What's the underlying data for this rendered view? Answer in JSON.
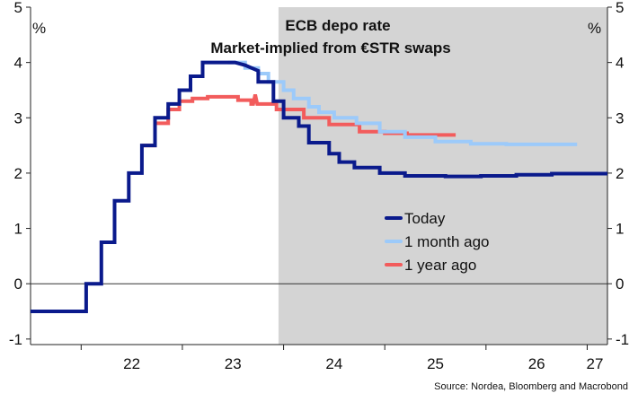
{
  "chart_data": {
    "type": "line",
    "title": "ECB depo rate",
    "subtitle": "Market-implied from €STR swaps",
    "y_unit_left": "%",
    "y_unit_right": "%",
    "ylim": [
      -1.1,
      5.0
    ],
    "yticks": [
      "-1",
      "0",
      "1",
      "2",
      "3",
      "4",
      "5"
    ],
    "xlim": [
      2021.5,
      2027.2
    ],
    "xticks": [
      "22",
      "23",
      "24",
      "25",
      "26",
      "27"
    ],
    "shaded_from": 2023.95,
    "grid": false,
    "legend_position": "center-right",
    "source": "Source: Nordea, Bloomberg and Macrobond",
    "colors": {
      "today": "#0a1a8c",
      "month": "#9ccafa",
      "year": "#f25c5c",
      "shade": "#d4d4d4"
    },
    "series": [
      {
        "name": "Today",
        "key": "today",
        "points": [
          [
            2021.5,
            -0.5
          ],
          [
            2022.05,
            -0.5
          ],
          [
            2022.05,
            0.0
          ],
          [
            2022.2,
            0.0
          ],
          [
            2022.2,
            0.75
          ],
          [
            2022.33,
            0.75
          ],
          [
            2022.33,
            1.5
          ],
          [
            2022.47,
            1.5
          ],
          [
            2022.47,
            2.0
          ],
          [
            2022.6,
            2.0
          ],
          [
            2022.6,
            2.5
          ],
          [
            2022.73,
            2.5
          ],
          [
            2022.73,
            3.0
          ],
          [
            2022.86,
            3.0
          ],
          [
            2022.86,
            3.25
          ],
          [
            2022.97,
            3.25
          ],
          [
            2022.97,
            3.5
          ],
          [
            2023.08,
            3.5
          ],
          [
            2023.08,
            3.75
          ],
          [
            2023.2,
            3.75
          ],
          [
            2023.2,
            4.0
          ],
          [
            2023.52,
            4.0
          ],
          [
            2023.62,
            3.95
          ],
          [
            2023.75,
            3.85
          ],
          [
            2023.75,
            3.65
          ],
          [
            2023.9,
            3.65
          ],
          [
            2023.9,
            3.3
          ],
          [
            2024.0,
            3.3
          ],
          [
            2024.0,
            3.0
          ],
          [
            2024.15,
            3.0
          ],
          [
            2024.15,
            2.85
          ],
          [
            2024.25,
            2.85
          ],
          [
            2024.25,
            2.55
          ],
          [
            2024.45,
            2.55
          ],
          [
            2024.45,
            2.35
          ],
          [
            2024.55,
            2.35
          ],
          [
            2024.55,
            2.2
          ],
          [
            2024.7,
            2.2
          ],
          [
            2024.7,
            2.1
          ],
          [
            2024.95,
            2.1
          ],
          [
            2024.95,
            2.0
          ],
          [
            2025.2,
            2.0
          ],
          [
            2025.2,
            1.95
          ],
          [
            2025.6,
            1.95
          ],
          [
            2025.6,
            1.94
          ],
          [
            2025.95,
            1.94
          ],
          [
            2025.95,
            1.95
          ],
          [
            2026.3,
            1.95
          ],
          [
            2026.3,
            1.97
          ],
          [
            2026.65,
            1.97
          ],
          [
            2026.65,
            1.99
          ],
          [
            2027.2,
            1.99
          ]
        ]
      },
      {
        "name": "1 month ago",
        "key": "month",
        "points": [
          [
            2023.45,
            4.0
          ],
          [
            2023.62,
            4.0
          ],
          [
            2023.62,
            3.9
          ],
          [
            2023.75,
            3.9
          ],
          [
            2023.75,
            3.8
          ],
          [
            2023.85,
            3.8
          ],
          [
            2023.85,
            3.65
          ],
          [
            2024.0,
            3.65
          ],
          [
            2024.0,
            3.5
          ],
          [
            2024.1,
            3.5
          ],
          [
            2024.1,
            3.35
          ],
          [
            2024.25,
            3.35
          ],
          [
            2024.25,
            3.2
          ],
          [
            2024.35,
            3.2
          ],
          [
            2024.35,
            3.1
          ],
          [
            2024.5,
            3.1
          ],
          [
            2024.5,
            3.0
          ],
          [
            2024.72,
            3.0
          ],
          [
            2024.72,
            2.9
          ],
          [
            2024.95,
            2.9
          ],
          [
            2024.95,
            2.75
          ],
          [
            2025.2,
            2.75
          ],
          [
            2025.2,
            2.65
          ],
          [
            2025.5,
            2.65
          ],
          [
            2025.5,
            2.57
          ],
          [
            2025.85,
            2.57
          ],
          [
            2025.85,
            2.53
          ],
          [
            2026.2,
            2.53
          ],
          [
            2026.2,
            2.52
          ],
          [
            2026.9,
            2.52
          ]
        ]
      },
      {
        "name": "1 year ago",
        "key": "year",
        "points": [
          [
            2022.6,
            2.5
          ],
          [
            2022.73,
            2.5
          ],
          [
            2022.73,
            2.9
          ],
          [
            2022.86,
            2.9
          ],
          [
            2022.86,
            3.15
          ],
          [
            2022.97,
            3.15
          ],
          [
            2022.97,
            3.3
          ],
          [
            2023.1,
            3.3
          ],
          [
            2023.1,
            3.35
          ],
          [
            2023.25,
            3.35
          ],
          [
            2023.25,
            3.38
          ],
          [
            2023.55,
            3.38
          ],
          [
            2023.55,
            3.32
          ],
          [
            2023.68,
            3.32
          ],
          [
            2023.68,
            3.25
          ],
          [
            2023.7,
            3.25
          ],
          [
            2023.72,
            3.42
          ],
          [
            2023.74,
            3.25
          ],
          [
            2023.93,
            3.25
          ],
          [
            2023.93,
            3.15
          ],
          [
            2024.2,
            3.15
          ],
          [
            2024.2,
            3.0
          ],
          [
            2024.45,
            3.0
          ],
          [
            2024.45,
            2.88
          ],
          [
            2024.75,
            2.88
          ],
          [
            2024.75,
            2.75
          ],
          [
            2025.0,
            2.75
          ],
          [
            2025.0,
            2.72
          ],
          [
            2025.22,
            2.72
          ],
          [
            2025.22,
            2.69
          ],
          [
            2025.7,
            2.69
          ]
        ]
      }
    ]
  }
}
